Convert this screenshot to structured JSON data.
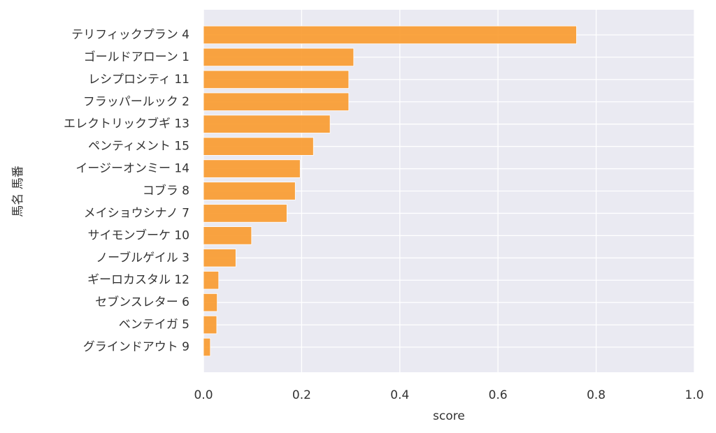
{
  "chart_data": {
    "type": "barh",
    "xlabel": "score",
    "ylabel": "馬名 馬番",
    "categories": [
      "テリフィックプラン 4",
      "ゴールドアローン 1",
      "レシプロシティ 11",
      "フラッパールック 2",
      "エレクトリックブギ 13",
      "ペンティメント 15",
      "イージーオンミー 14",
      "コブラ 8",
      "メイショウシナノ 7",
      "サイモンブーケ 10",
      "ノーブルゲイル 3",
      "ギーロカスタル 12",
      "セブンスレター 6",
      "ベンテイガ 5",
      "グラインドアウト 9"
    ],
    "values": [
      0.76,
      0.306,
      0.296,
      0.296,
      0.258,
      0.224,
      0.197,
      0.187,
      0.17,
      0.098,
      0.066,
      0.031,
      0.028,
      0.027,
      0.014
    ],
    "color": "#fa9a2c",
    "xlim": [
      0,
      1
    ],
    "xticks": [
      {
        "value": 0,
        "label": "0.0"
      },
      0.2,
      0.4,
      0.6,
      0.8,
      {
        "value": 1,
        "label": "1.0"
      }
    ],
    "grid": true
  }
}
